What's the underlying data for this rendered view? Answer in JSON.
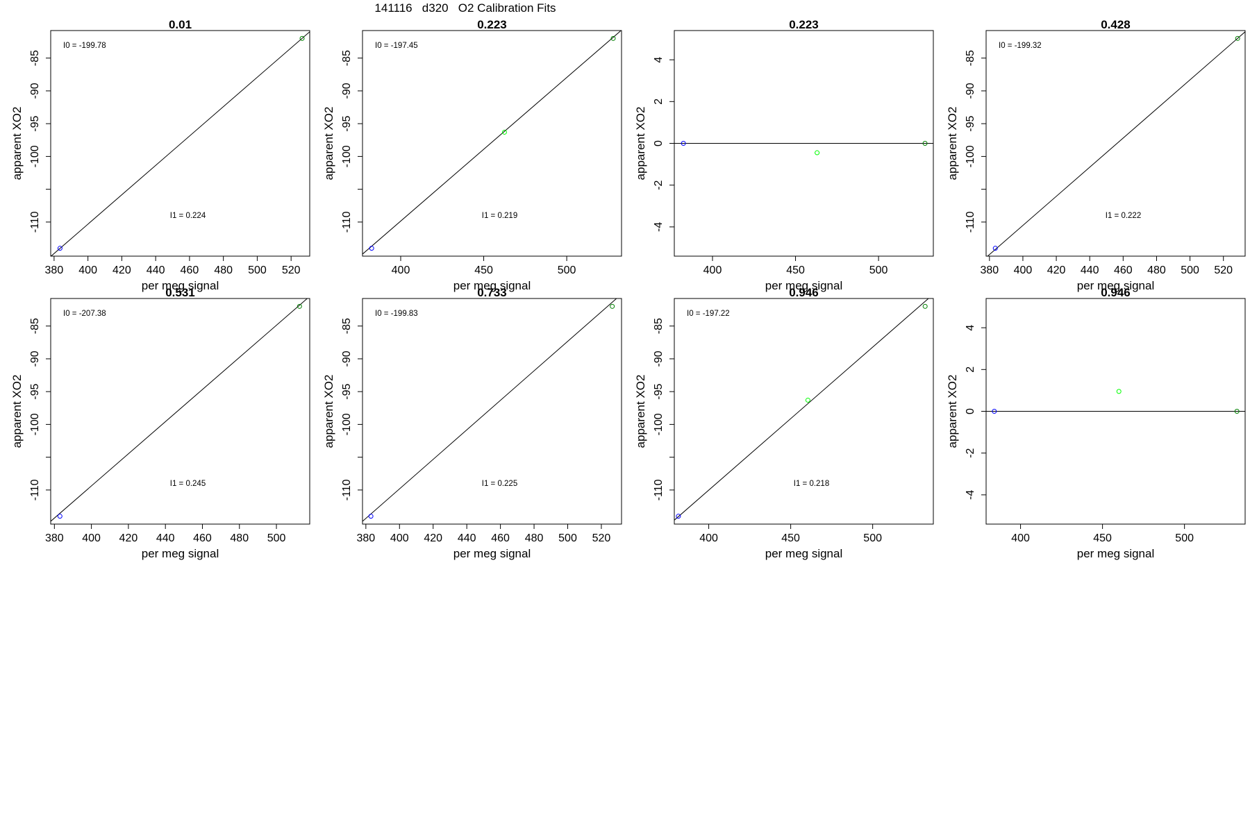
{
  "figure": {
    "title": "141116   d320   O2 Calibration Fits"
  },
  "chart_data": [
    {
      "type": "scatter",
      "title": "0.01",
      "xlabel": "per meg signal",
      "ylabel": "apparent XO2",
      "xlim": [
        378,
        531
      ],
      "ylim": [
        -115.2,
        -80.8
      ],
      "xticks": [
        380,
        400,
        420,
        440,
        460,
        480,
        500,
        520
      ],
      "yticks": [
        -85,
        -90,
        -95,
        -100,
        -105,
        -110
      ],
      "yticks_labeled": [
        -85,
        -90,
        -95,
        -100,
        -110
      ],
      "line": {
        "kind": "fit",
        "x": [
          378,
          531
        ],
        "y": [
          -115.25,
          -80.98
        ]
      },
      "points": [
        {
          "x": 383.5,
          "y": -114.0,
          "color": "#0000ff"
        },
        {
          "x": 526.5,
          "y": -82.0,
          "color": "#008000"
        }
      ],
      "annotations": [
        {
          "text": "I0 =  -199.78",
          "pos": "top-left"
        },
        {
          "text": "I1 =  0.224",
          "pos": "bottom-center"
        }
      ]
    },
    {
      "type": "scatter",
      "title": "0.223",
      "xlabel": "per meg signal",
      "ylabel": "apparent XO2",
      "xlim": [
        377,
        533
      ],
      "ylim": [
        -115.2,
        -80.8
      ],
      "xticks": [
        400,
        450,
        500
      ],
      "yticks": [
        -85,
        -90,
        -95,
        -100,
        -105,
        -110
      ],
      "yticks_labeled": [
        -85,
        -90,
        -95,
        -100,
        -110
      ],
      "line": {
        "kind": "fit",
        "x": [
          377,
          533
        ],
        "y": [
          -114.89,
          -80.73
        ]
      },
      "points": [
        {
          "x": 382.5,
          "y": -114.0,
          "color": "#0000ff"
        },
        {
          "x": 462.5,
          "y": -96.3,
          "color": "#00ff00"
        },
        {
          "x": 528,
          "y": -82.0,
          "color": "#008000"
        }
      ],
      "annotations": [
        {
          "text": "I0 =  -197.45",
          "pos": "top-left"
        },
        {
          "text": "I1 =  0.219",
          "pos": "bottom-center"
        }
      ]
    },
    {
      "type": "scatter",
      "title": "0.223",
      "xlabel": "per meg signal",
      "ylabel": "apparent XO2",
      "xlim": [
        377,
        533
      ],
      "ylim": [
        -5.4,
        5.4
      ],
      "xticks": [
        400,
        450,
        500
      ],
      "yticks": [
        -4,
        -2,
        0,
        2,
        4
      ],
      "yticks_labeled": [
        -4,
        -2,
        0,
        2,
        4
      ],
      "line": {
        "kind": "hline",
        "y": 0
      },
      "points": [
        {
          "x": 382.5,
          "y": 0,
          "color": "#0000ff"
        },
        {
          "x": 463,
          "y": -0.45,
          "color": "#00ff00"
        },
        {
          "x": 528,
          "y": 0,
          "color": "#008000"
        }
      ],
      "annotations": []
    },
    {
      "type": "scatter",
      "title": "0.428",
      "xlabel": "per meg signal",
      "ylabel": "apparent XO2",
      "xlim": [
        378,
        533
      ],
      "ylim": [
        -115.2,
        -80.8
      ],
      "xticks": [
        380,
        400,
        420,
        440,
        460,
        480,
        500,
        520
      ],
      "yticks": [
        -85,
        -90,
        -95,
        -100,
        -105,
        -110
      ],
      "yticks_labeled": [
        -85,
        -90,
        -95,
        -100,
        -110
      ],
      "line": {
        "kind": "fit",
        "x": [
          378,
          533
        ],
        "y": [
          -115.4,
          -80.99
        ]
      },
      "points": [
        {
          "x": 383.5,
          "y": -114.0,
          "color": "#0000ff"
        },
        {
          "x": 528.5,
          "y": -82.0,
          "color": "#008000"
        }
      ],
      "annotations": [
        {
          "text": "I0 =  -199.32",
          "pos": "top-left"
        },
        {
          "text": "I1 =  0.222",
          "pos": "bottom-center"
        }
      ]
    },
    {
      "type": "scatter",
      "title": "0.531",
      "xlabel": "per meg signal",
      "ylabel": "apparent XO2",
      "xlim": [
        378,
        518
      ],
      "ylim": [
        -115.2,
        -80.8
      ],
      "xticks": [
        380,
        400,
        420,
        440,
        460,
        480,
        500
      ],
      "yticks": [
        -85,
        -90,
        -95,
        -100,
        -105,
        -110
      ],
      "yticks_labeled": [
        -85,
        -90,
        -95,
        -100,
        -110
      ],
      "line": {
        "kind": "fit",
        "x": [
          378,
          518
        ],
        "y": [
          -114.77,
          -80.47
        ]
      },
      "points": [
        {
          "x": 383,
          "y": -114.0,
          "color": "#0000ff"
        },
        {
          "x": 512.5,
          "y": -82.0,
          "color": "#008000"
        }
      ],
      "annotations": [
        {
          "text": "I0 =  -207.38",
          "pos": "top-left"
        },
        {
          "text": "I1 =  0.245",
          "pos": "bottom-center"
        }
      ]
    },
    {
      "type": "scatter",
      "title": "0.733",
      "xlabel": "per meg signal",
      "ylabel": "apparent XO2",
      "xlim": [
        378,
        532
      ],
      "ylim": [
        -115.2,
        -80.8
      ],
      "xticks": [
        380,
        400,
        420,
        440,
        460,
        480,
        500,
        520
      ],
      "yticks": [
        -85,
        -90,
        -95,
        -100,
        -105,
        -110
      ],
      "yticks_labeled": [
        -85,
        -90,
        -95,
        -100,
        -110
      ],
      "line": {
        "kind": "fit",
        "x": [
          378,
          532
        ],
        "y": [
          -114.78,
          -80.13
        ]
      },
      "points": [
        {
          "x": 383,
          "y": -114.0,
          "color": "#0000ff"
        },
        {
          "x": 526.5,
          "y": -82.0,
          "color": "#008000"
        }
      ],
      "annotations": [
        {
          "text": "I0 =  -199.83",
          "pos": "top-left"
        },
        {
          "text": "I1 =  0.225",
          "pos": "bottom-center"
        }
      ]
    },
    {
      "type": "scatter",
      "title": "0.946",
      "xlabel": "per meg signal",
      "ylabel": "apparent XO2",
      "xlim": [
        379,
        537
      ],
      "ylim": [
        -115.2,
        -80.8
      ],
      "xticks": [
        400,
        450,
        500
      ],
      "yticks": [
        -85,
        -90,
        -95,
        -100,
        -105,
        -110
      ],
      "yticks_labeled": [
        -85,
        -90,
        -95,
        -100,
        -110
      ],
      "line": {
        "kind": "fit",
        "x": [
          379,
          537
        ],
        "y": [
          -114.6,
          -80.15
        ]
      },
      "points": [
        {
          "x": 381.5,
          "y": -114.0,
          "color": "#0000ff"
        },
        {
          "x": 460.5,
          "y": -96.3,
          "color": "#00ff00"
        },
        {
          "x": 532,
          "y": -82.0,
          "color": "#008000"
        }
      ],
      "annotations": [
        {
          "text": "I0 =  -197.22",
          "pos": "top-left"
        },
        {
          "text": "I1 =  0.218",
          "pos": "bottom-center"
        }
      ]
    },
    {
      "type": "scatter",
      "title": "0.946",
      "xlabel": "per meg signal",
      "ylabel": "apparent XO2",
      "xlim": [
        379,
        537
      ],
      "ylim": [
        -5.4,
        5.4
      ],
      "xticks": [
        400,
        450,
        500
      ],
      "yticks": [
        -4,
        -2,
        0,
        2,
        4
      ],
      "yticks_labeled": [
        -4,
        -2,
        0,
        2,
        4
      ],
      "line": {
        "kind": "hline",
        "y": 0
      },
      "points": [
        {
          "x": 384,
          "y": 0,
          "color": "#0000ff"
        },
        {
          "x": 460,
          "y": 0.95,
          "color": "#00ff00"
        },
        {
          "x": 532,
          "y": 0,
          "color": "#008000"
        }
      ],
      "annotations": []
    }
  ]
}
